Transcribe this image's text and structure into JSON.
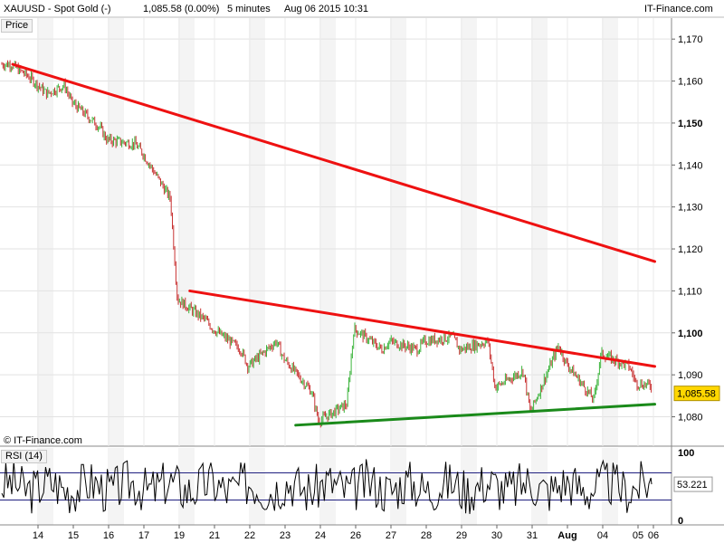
{
  "header": {
    "symbol_label": "XAUUSD - Spot Gold (-)",
    "last_price": "1,085.58 (0.00%)",
    "interval": "5 minutes",
    "datetime": "Aug 06 2015 10:31",
    "brand": "IT-Finance.com"
  },
  "watermark": "© IT-Finance.com",
  "colors": {
    "up_candle": "#3cb43c",
    "down_candle": "#c83232",
    "resistance_line": "#ee1111",
    "support_line": "#1a8a1a",
    "last_price_tag": "#ffd700",
    "rsi_line": "#000000",
    "rsi_band_line": "#202080"
  },
  "chart_data": [
    {
      "type": "candlestick",
      "panel_label": "Price",
      "symbol": "XAUUSD",
      "interval": "5 minutes",
      "x_tick_labels": [
        "14",
        "15",
        "16",
        "17",
        "19",
        "21",
        "22",
        "23",
        "24",
        "26",
        "27",
        "28",
        "29",
        "30",
        "31",
        "Aug",
        "04",
        "05",
        "06"
      ],
      "y_tick_labels": [
        "1,080",
        "1,090",
        "1,100",
        "1,110",
        "1,120",
        "1,130",
        "1,140",
        "1,150",
        "1,160",
        "1,170"
      ],
      "y_ticks": [
        1080,
        1090,
        1100,
        1110,
        1120,
        1130,
        1140,
        1150,
        1160,
        1170
      ],
      "bold_y_ticks": [
        1100,
        1150
      ],
      "ylim": [
        1073,
        1175
      ],
      "last_value": 1085.58,
      "last_value_label": "1,085.58",
      "price_path": [
        [
          "14",
          1164
        ],
        [
          "14",
          1161
        ],
        [
          "15",
          1157
        ],
        [
          "15",
          1159
        ],
        [
          "15",
          1155
        ],
        [
          "16",
          1149
        ],
        [
          "16",
          1146
        ],
        [
          "17",
          1145
        ],
        [
          "17",
          1143
        ],
        [
          "19",
          1132
        ],
        [
          "19",
          1108
        ],
        [
          "21",
          1103
        ],
        [
          "21",
          1101
        ],
        [
          "22",
          1096
        ],
        [
          "22",
          1092
        ],
        [
          "23",
          1098
        ],
        [
          "23",
          1094
        ],
        [
          "24",
          1086
        ],
        [
          "24",
          1079
        ],
        [
          "26",
          1083
        ],
        [
          "26",
          1101
        ],
        [
          "27",
          1096
        ],
        [
          "27",
          1098
        ],
        [
          "28",
          1096
        ],
        [
          "28",
          1098
        ],
        [
          "29",
          1099
        ],
        [
          "29",
          1096
        ],
        [
          "30",
          1098
        ],
        [
          "30",
          1087
        ],
        [
          "31",
          1091
        ],
        [
          "31",
          1081
        ],
        [
          "Aug",
          1097
        ],
        [
          "Aug",
          1093
        ],
        [
          "04",
          1084
        ],
        [
          "04",
          1095
        ],
        [
          "05",
          1092
        ],
        [
          "05",
          1088
        ],
        [
          "06",
          1087
        ],
        [
          "06",
          1085.58
        ]
      ],
      "trendlines": [
        {
          "role": "resistance",
          "from": [
            "14",
            1164
          ],
          "to": [
            "06",
            1117
          ],
          "color": "#ee1111"
        },
        {
          "role": "resistance",
          "from": [
            "21",
            1110
          ],
          "to": [
            "06",
            1092
          ],
          "color": "#ee1111"
        },
        {
          "role": "support",
          "from": [
            "24",
            1078
          ],
          "to": [
            "06",
            1083
          ],
          "color": "#1a8a1a"
        }
      ]
    },
    {
      "type": "line",
      "panel_label": "RSI (14)",
      "ylim": [
        0,
        100
      ],
      "y_tick_labels": [
        "0",
        "100"
      ],
      "bands": [
        30,
        70
      ],
      "last_value": 53.221,
      "last_value_label": "53.221"
    }
  ]
}
